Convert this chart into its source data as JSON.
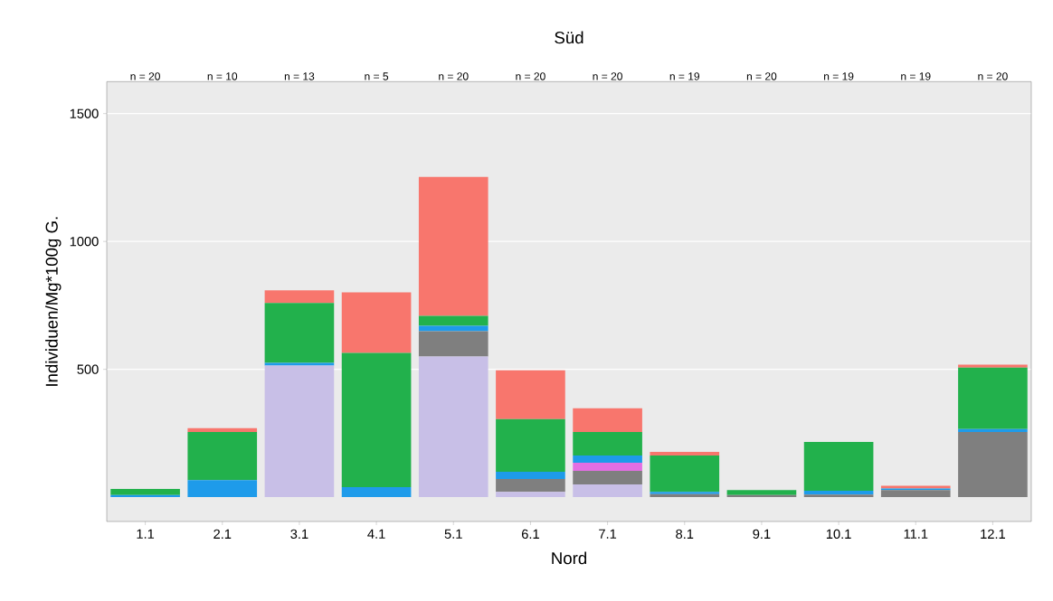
{
  "chart_data": {
    "type": "bar",
    "stacked": true,
    "title": "Süd",
    "xlabel": "Nord",
    "ylabel": "Individuen/Mg*100g G.",
    "categories": [
      "1.1",
      "2.1",
      "3.1",
      "4.1",
      "5.1",
      "6.1",
      "7.1",
      "8.1",
      "9.1",
      "10.1",
      "11.1",
      "12.1"
    ],
    "series": [
      {
        "color": "#c8bfe7",
        "values": [
          0,
          0,
          515,
          0,
          550,
          21,
          50,
          0,
          0,
          0,
          null,
          0
        ]
      },
      {
        "color": "#7f7f7f",
        "values": [
          0,
          0,
          0,
          0,
          99,
          50,
          53,
          12,
          8,
          10,
          28,
          255
        ]
      },
      {
        "color": "#e36ee3",
        "values": [
          0,
          0,
          0,
          0,
          0,
          0,
          32,
          0,
          0,
          0,
          0,
          0
        ]
      },
      {
        "color": "#1e9bea",
        "values": [
          8,
          67,
          10,
          39,
          21,
          28,
          28,
          9,
          0,
          15,
          6,
          11
        ]
      },
      {
        "color": "#22b14c",
        "values": [
          24,
          188,
          234,
          525,
          39,
          206,
          92,
          142,
          20,
          191,
          0,
          241
        ]
      },
      {
        "color": "#f8766d",
        "values": [
          0,
          15,
          50,
          237,
          543,
          191,
          93,
          14,
          0,
          0,
          11,
          11
        ]
      }
    ],
    "ylim": [
      -95,
      1625
    ],
    "yticks": [
      500,
      1000,
      1500
    ],
    "grid": "y",
    "annotations": [
      "n = 20",
      "n = 10",
      "n = 13",
      "n = 5",
      "n = 20",
      "n = 20",
      "n = 20",
      "n = 19",
      "n = 20",
      "n = 19",
      "n = 19",
      "n = 20"
    ]
  }
}
